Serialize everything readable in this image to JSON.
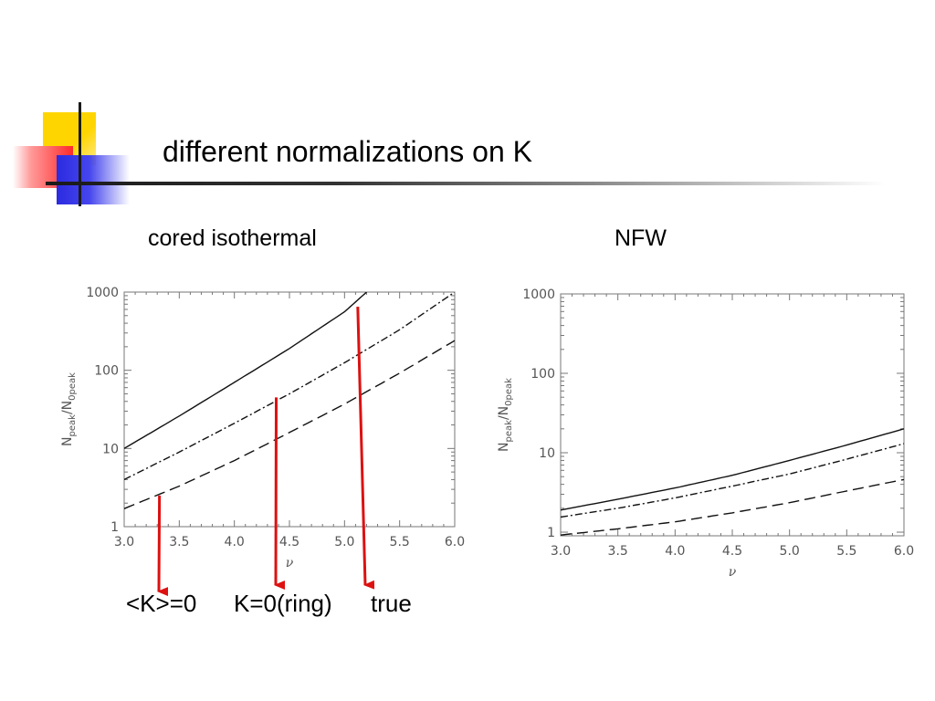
{
  "slide": {
    "title": "different normalizations on K",
    "panel_labels": [
      "cored isothermal",
      "NFW"
    ],
    "legend": [
      "<K>=0",
      "K=0(ring)",
      "true"
    ],
    "colors": {
      "accent_yellow": "#ffd500",
      "accent_red": "#ff2a2a",
      "accent_blue": "#2b2be0",
      "arrow_red": "#dd1111"
    }
  },
  "chart_data": [
    {
      "type": "line",
      "panel_label": "cored isothermal",
      "xlabel": "ν",
      "ylabel_main": "N",
      "ylabel_sub1": "peak",
      "ylabel_sep": "/N",
      "ylabel_sub2": "0peak",
      "xlim": [
        3.0,
        6.0
      ],
      "ylim": [
        1,
        1000
      ],
      "yscale": "log",
      "xticks": [
        "3.0",
        "3.5",
        "4.0",
        "4.5",
        "5.0",
        "5.5",
        "6.0"
      ],
      "yticks": [
        "1",
        "10",
        "100",
        "1000"
      ],
      "series": [
        {
          "name": "true",
          "style": "solid",
          "x": [
            3.0,
            3.5,
            4.0,
            4.5,
            5.0,
            5.2
          ],
          "y": [
            10,
            26,
            70,
            190,
            560,
            1000
          ]
        },
        {
          "name": "K=0(ring)",
          "style": "dashdot",
          "x": [
            3.0,
            3.5,
            4.0,
            4.5,
            5.0,
            5.5,
            6.0
          ],
          "y": [
            4,
            9,
            21,
            50,
            125,
            330,
            1000
          ]
        },
        {
          "name": "<K>=0",
          "style": "dashed",
          "x": [
            3.0,
            3.5,
            4.0,
            4.5,
            5.0,
            5.5,
            6.0
          ],
          "y": [
            1.7,
            3.3,
            7,
            16,
            37,
            92,
            240
          ]
        }
      ],
      "annotations": [
        {
          "label": "<K>=0",
          "x_from": 3.32,
          "y_from": 2.5
        },
        {
          "label": "K=0(ring)",
          "x_from": 4.38,
          "y_from": 45
        },
        {
          "label": "true",
          "x_from": 5.12,
          "y_from": 650
        }
      ]
    },
    {
      "type": "line",
      "panel_label": "NFW",
      "xlabel": "ν",
      "ylabel_main": "N",
      "ylabel_sub1": "peak",
      "ylabel_sep": "/N",
      "ylabel_sub2": "0peak",
      "xlim": [
        3.0,
        6.0
      ],
      "ylim": [
        0.9,
        1000
      ],
      "yscale": "log",
      "xticks": [
        "3.0",
        "3.5",
        "4.0",
        "4.5",
        "5.0",
        "5.5",
        "6.0"
      ],
      "yticks": [
        "1",
        "10",
        "100",
        "1000"
      ],
      "series": [
        {
          "name": "true",
          "style": "solid",
          "x": [
            3.0,
            3.5,
            4.0,
            4.5,
            5.0,
            5.5,
            6.0
          ],
          "y": [
            1.9,
            2.6,
            3.6,
            5.2,
            8,
            12.5,
            20
          ]
        },
        {
          "name": "K=0(ring)",
          "style": "dashdot",
          "x": [
            3.0,
            3.5,
            4.0,
            4.5,
            5.0,
            5.5,
            6.0
          ],
          "y": [
            1.55,
            2.0,
            2.7,
            3.8,
            5.4,
            8.3,
            13
          ]
        },
        {
          "name": "<K>=0",
          "style": "dashed",
          "x": [
            3.0,
            3.5,
            4.0,
            4.5,
            5.0,
            5.5,
            6.0
          ],
          "y": [
            0.92,
            1.1,
            1.35,
            1.75,
            2.35,
            3.3,
            4.6
          ]
        }
      ]
    }
  ]
}
